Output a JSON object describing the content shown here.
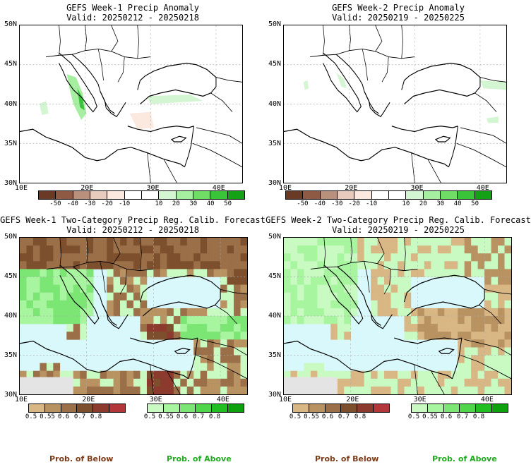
{
  "panels": {
    "p1": {
      "title_line1": "GEFS Week-1 Precip Anomaly",
      "title_line2": "Valid: 20250212 - 20250218"
    },
    "p2": {
      "title_line1": "GEFS Week-2 Precip Anomaly",
      "title_line2": "Valid: 20250219 - 20250225"
    },
    "p3": {
      "title_line1": "GEFS Week-1 Two-Category Precip Reg. Calib. Forecast",
      "title_line2": "Valid: 20250212 - 20250218"
    },
    "p4": {
      "title_line1": "GEFS Week-2 Two-Category Precip Reg. Calib. Forecast",
      "title_line2": "Valid: 20250219 - 20250225"
    }
  },
  "axes": {
    "lat_labels": [
      "50N",
      "45N",
      "40N",
      "35N",
      "30N"
    ],
    "lon_labels": [
      "10E",
      "20E",
      "30E",
      "40E"
    ]
  },
  "anomaly_colorbar": {
    "colors": [
      "#6b3a25",
      "#8f5a43",
      "#b8907c",
      "#e9cbbd",
      "#fbe9e0",
      "#ffffff",
      "#ffffff",
      "#d4f5d2",
      "#a6eea0",
      "#6fdd66",
      "#3ac43a",
      "#15a115"
    ],
    "labels": [
      "-50",
      "-40",
      "-30",
      "-20",
      "-10",
      "10",
      "20",
      "30",
      "40",
      "50"
    ]
  },
  "below_colorbar": {
    "colors": [
      "#d8b785",
      "#b99262",
      "#9b6f48",
      "#7d4f2d",
      "#8c3a2d",
      "#b3363a"
    ],
    "labels": [
      "0.5",
      "0.55",
      "0.6",
      "0.7",
      "0.8"
    ]
  },
  "above_colorbar": {
    "colors": [
      "#c8fac2",
      "#a8f5a0",
      "#7be673",
      "#4fd64a",
      "#22bf22",
      "#0ea10e"
    ],
    "labels": [
      "0.5",
      "0.55",
      "0.6",
      "0.7",
      "0.8"
    ]
  },
  "legend": {
    "below_text": "Prob. of Below",
    "above_text": "Prob. of Above"
  },
  "colors": {
    "sea_prob": "#d9f8fc",
    "land_noanom": "#ffffff",
    "grey_mask": "#e4e4e4"
  }
}
